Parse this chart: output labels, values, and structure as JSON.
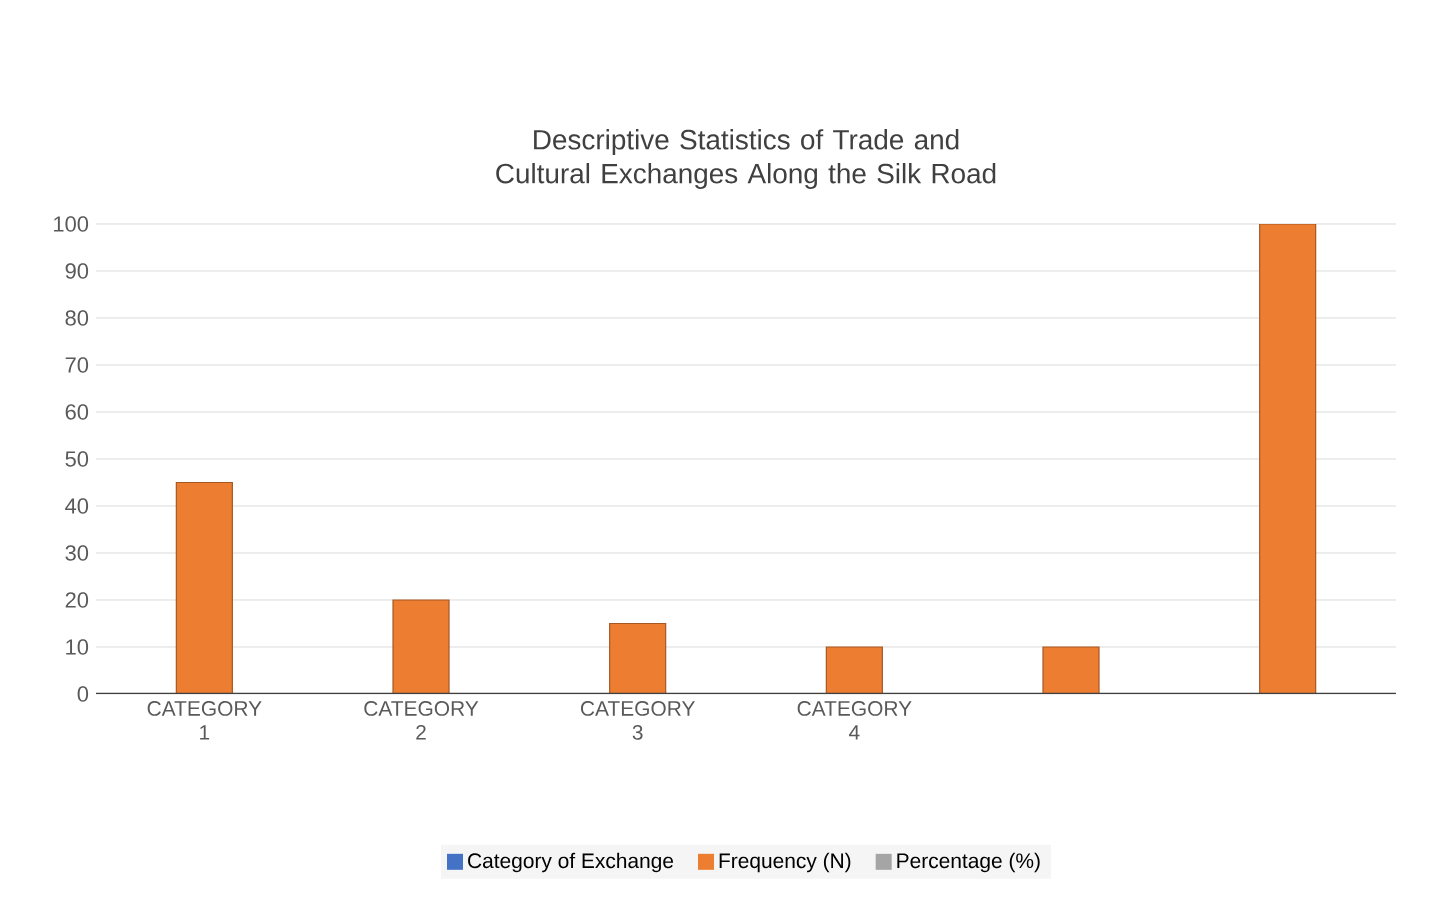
{
  "chart_data": {
    "type": "bar",
    "title": "Descriptive Statistics of Trade and Cultural Exchanges Along the Silk Road",
    "categories": [
      "CATEGORY 1",
      "CATEGORY 2",
      "CATEGORY 3",
      "CATEGORY 4",
      null,
      null
    ],
    "series": [
      {
        "name": "Category of Exchange",
        "color": "#4472c4",
        "values": [
          0,
          0,
          0,
          0,
          0,
          0
        ]
      },
      {
        "name": "Frequency (N)",
        "color": "#ed7d31",
        "values": [
          45,
          20,
          15,
          10,
          10,
          100
        ]
      },
      {
        "name": "Percentage (%)",
        "color": "#a5a5a5",
        "values": [
          0,
          0,
          0,
          0,
          0,
          0
        ]
      }
    ],
    "ylim": [
      0,
      100
    ],
    "yticks": [
      0,
      10,
      20,
      30,
      40,
      50,
      60,
      70,
      80,
      90,
      100
    ],
    "grid": "y",
    "legend": "bottom"
  }
}
